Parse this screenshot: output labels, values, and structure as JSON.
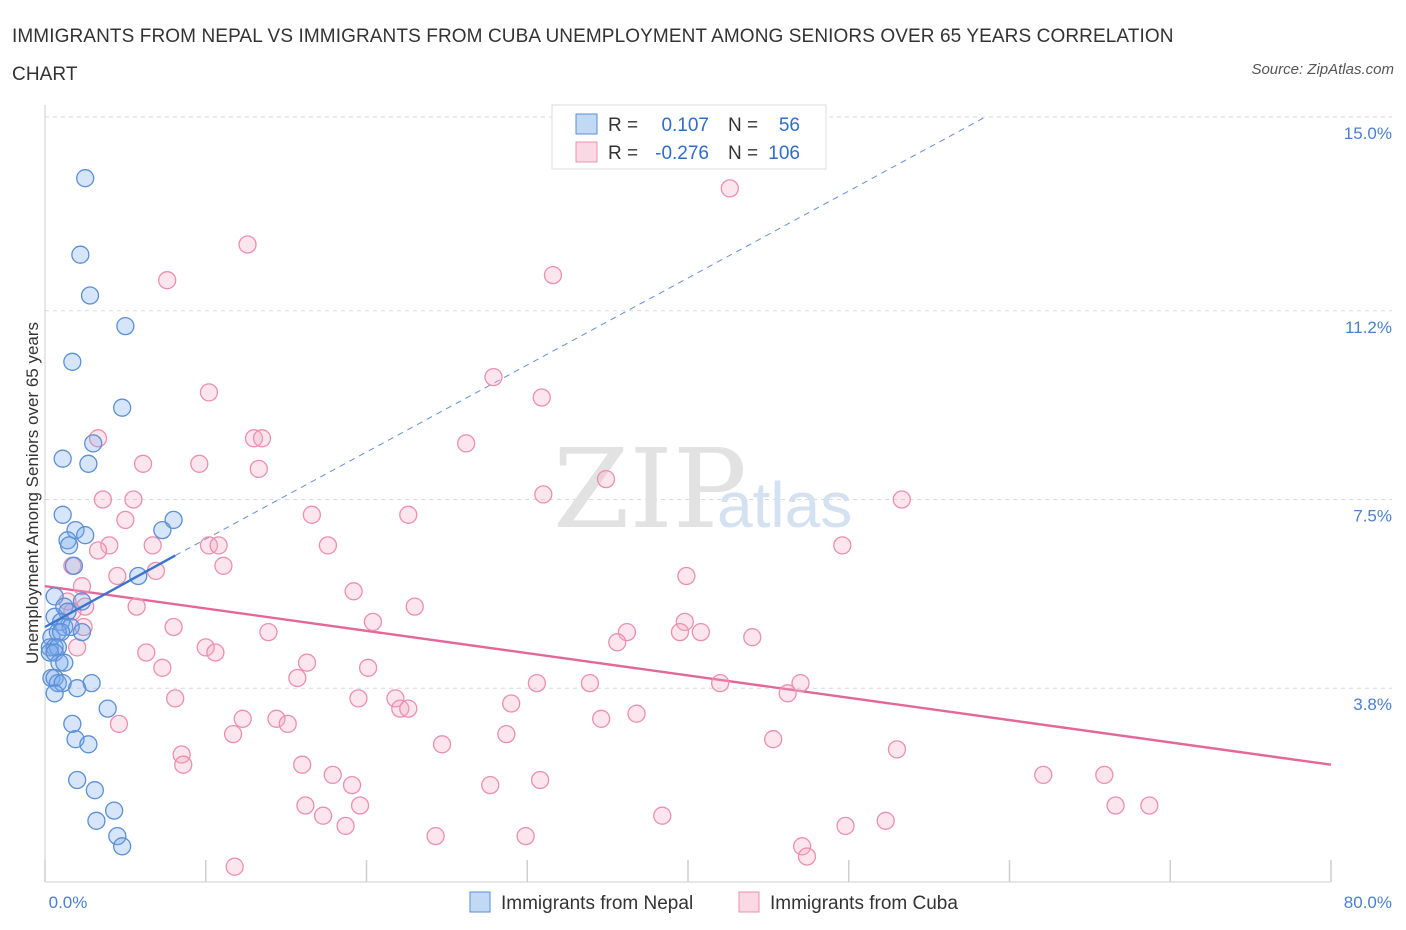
{
  "title": "IMMIGRANTS FROM NEPAL VS IMMIGRANTS FROM CUBA UNEMPLOYMENT AMONG SENIORS OVER 65 YEARS CORRELATION CHART",
  "source": "Source: ZipAtlas.com",
  "watermark": {
    "zip": "ZIP",
    "atlas": "atlas"
  },
  "colors": {
    "nepal": "#5b8fd6",
    "cuba": "#ec8fae",
    "nepal_line": "#3a74cf",
    "cuba_line": "#e3689a",
    "tick": "#4a7fcf"
  },
  "legend": {
    "rows": [
      {
        "r_label": "R =",
        "r_value": "0.107",
        "n_label": "N =",
        "n_value": "56"
      },
      {
        "r_label": "R =",
        "r_value": "-0.276",
        "n_label": "N =",
        "n_value": "106"
      }
    ]
  },
  "bottom_legend": [
    "Immigrants from Nepal",
    "Immigrants from Cuba"
  ],
  "chart_data": {
    "type": "scatter",
    "title": "IMMIGRANTS FROM NEPAL VS IMMIGRANTS FROM CUBA UNEMPLOYMENT AMONG SENIORS OVER 65 YEARS CORRELATION CHART",
    "xlabel": "",
    "ylabel": "Unemployment Among Seniors over 65 years",
    "xlim": [
      0,
      80
    ],
    "ylim": [
      0,
      15
    ],
    "x_tick_labels": [
      "0.0%",
      "80.0%"
    ],
    "y_ticks": [
      3.8,
      7.5,
      11.2,
      15.0
    ],
    "y_tick_labels": [
      "3.8%",
      "7.5%",
      "11.2%",
      "15.0%"
    ],
    "grid": true,
    "legend_position": "top-center",
    "series": [
      {
        "name": "Immigrants from Nepal",
        "color": "#5b8fd6",
        "trend": {
          "x": [
            0,
            8.1
          ],
          "y": [
            5.0,
            6.4
          ],
          "dashed_extension_to": [
            58.5,
            15.0
          ]
        },
        "points": [
          [
            2.5,
            13.8
          ],
          [
            2.2,
            12.3
          ],
          [
            2.8,
            11.5
          ],
          [
            5.0,
            10.9
          ],
          [
            1.7,
            10.2
          ],
          [
            4.8,
            9.3
          ],
          [
            1.1,
            8.3
          ],
          [
            2.7,
            8.2
          ],
          [
            3.0,
            8.6
          ],
          [
            1.1,
            7.2
          ],
          [
            8.0,
            7.1
          ],
          [
            1.9,
            6.9
          ],
          [
            7.3,
            6.9
          ],
          [
            1.4,
            6.7
          ],
          [
            1.5,
            6.6
          ],
          [
            2.5,
            6.8
          ],
          [
            1.8,
            6.2
          ],
          [
            5.8,
            6.0
          ],
          [
            0.6,
            5.6
          ],
          [
            0.6,
            5.2
          ],
          [
            1.2,
            5.4
          ],
          [
            1.4,
            5.3
          ],
          [
            2.3,
            5.5
          ],
          [
            1.0,
            5.1
          ],
          [
            1.2,
            5.0
          ],
          [
            1.6,
            5.0
          ],
          [
            0.4,
            4.8
          ],
          [
            0.8,
            4.9
          ],
          [
            1.0,
            4.9
          ],
          [
            2.3,
            4.9
          ],
          [
            0.3,
            4.6
          ],
          [
            0.6,
            4.6
          ],
          [
            0.8,
            4.6
          ],
          [
            0.3,
            4.5
          ],
          [
            0.6,
            4.5
          ],
          [
            0.9,
            4.3
          ],
          [
            1.2,
            4.3
          ],
          [
            0.4,
            4.0
          ],
          [
            0.6,
            4.0
          ],
          [
            0.8,
            3.9
          ],
          [
            1.1,
            3.9
          ],
          [
            2.9,
            3.9
          ],
          [
            2.0,
            3.8
          ],
          [
            0.6,
            3.7
          ],
          [
            3.9,
            3.4
          ],
          [
            1.7,
            3.1
          ],
          [
            1.9,
            2.8
          ],
          [
            2.7,
            2.7
          ],
          [
            2.0,
            2.0
          ],
          [
            3.1,
            1.8
          ],
          [
            4.3,
            1.4
          ],
          [
            3.2,
            1.2
          ],
          [
            4.5,
            0.9
          ],
          [
            4.8,
            0.7
          ]
        ]
      },
      {
        "name": "Immigrants from Cuba",
        "color": "#ec8fae",
        "trend": {
          "x": [
            0,
            80
          ],
          "y": [
            5.8,
            2.3
          ]
        },
        "points": [
          [
            42.6,
            13.6
          ],
          [
            12.6,
            12.5
          ],
          [
            7.6,
            11.8
          ],
          [
            31.6,
            11.9
          ],
          [
            27.9,
            9.9
          ],
          [
            10.2,
            9.6
          ],
          [
            30.9,
            9.5
          ],
          [
            13.0,
            8.7
          ],
          [
            3.3,
            8.7
          ],
          [
            13.5,
            8.7
          ],
          [
            26.2,
            8.6
          ],
          [
            6.1,
            8.2
          ],
          [
            9.6,
            8.2
          ],
          [
            13.3,
            8.1
          ],
          [
            34.9,
            7.9
          ],
          [
            3.6,
            7.5
          ],
          [
            5.5,
            7.5
          ],
          [
            31.0,
            7.6
          ],
          [
            53.3,
            7.5
          ],
          [
            16.6,
            7.2
          ],
          [
            22.6,
            7.2
          ],
          [
            5.0,
            7.1
          ],
          [
            4.0,
            6.6
          ],
          [
            6.7,
            6.6
          ],
          [
            10.2,
            6.6
          ],
          [
            10.8,
            6.6
          ],
          [
            17.6,
            6.6
          ],
          [
            49.6,
            6.6
          ],
          [
            3.3,
            6.5
          ],
          [
            1.7,
            6.2
          ],
          [
            11.1,
            6.2
          ],
          [
            4.5,
            6.0
          ],
          [
            6.9,
            6.1
          ],
          [
            39.9,
            6.0
          ],
          [
            2.3,
            5.8
          ],
          [
            19.2,
            5.7
          ],
          [
            1.4,
            5.5
          ],
          [
            2.5,
            5.4
          ],
          [
            5.7,
            5.4
          ],
          [
            1.7,
            5.3
          ],
          [
            23.0,
            5.4
          ],
          [
            20.4,
            5.1
          ],
          [
            39.8,
            5.1
          ],
          [
            8.0,
            5.0
          ],
          [
            2.4,
            5.0
          ],
          [
            13.9,
            4.9
          ],
          [
            36.2,
            4.9
          ],
          [
            39.5,
            4.9
          ],
          [
            40.8,
            4.9
          ],
          [
            35.6,
            4.7
          ],
          [
            44.0,
            4.8
          ],
          [
            2.0,
            4.6
          ],
          [
            6.3,
            4.5
          ],
          [
            10.0,
            4.6
          ],
          [
            10.6,
            4.5
          ],
          [
            16.3,
            4.3
          ],
          [
            7.3,
            4.2
          ],
          [
            20.1,
            4.2
          ],
          [
            15.7,
            4.0
          ],
          [
            30.6,
            3.9
          ],
          [
            33.9,
            3.9
          ],
          [
            42.0,
            3.9
          ],
          [
            47.0,
            3.9
          ],
          [
            46.2,
            3.7
          ],
          [
            8.1,
            3.6
          ],
          [
            19.5,
            3.6
          ],
          [
            21.8,
            3.6
          ],
          [
            22.1,
            3.4
          ],
          [
            22.6,
            3.4
          ],
          [
            29.0,
            3.5
          ],
          [
            36.8,
            3.3
          ],
          [
            34.6,
            3.2
          ],
          [
            12.3,
            3.2
          ],
          [
            14.4,
            3.2
          ],
          [
            15.1,
            3.1
          ],
          [
            4.6,
            3.1
          ],
          [
            11.7,
            2.9
          ],
          [
            28.7,
            2.9
          ],
          [
            45.3,
            2.8
          ],
          [
            24.7,
            2.7
          ],
          [
            53.0,
            2.6
          ],
          [
            8.5,
            2.5
          ],
          [
            8.6,
            2.3
          ],
          [
            16.0,
            2.3
          ],
          [
            17.9,
            2.1
          ],
          [
            30.8,
            2.0
          ],
          [
            62.1,
            2.1
          ],
          [
            65.9,
            2.1
          ],
          [
            19.1,
            1.9
          ],
          [
            27.7,
            1.9
          ],
          [
            68.7,
            1.5
          ],
          [
            16.2,
            1.5
          ],
          [
            19.6,
            1.5
          ],
          [
            66.6,
            1.5
          ],
          [
            38.4,
            1.3
          ],
          [
            17.3,
            1.3
          ],
          [
            52.3,
            1.2
          ],
          [
            49.8,
            1.1
          ],
          [
            18.7,
            1.1
          ],
          [
            24.3,
            0.9
          ],
          [
            29.9,
            0.9
          ],
          [
            47.1,
            0.7
          ],
          [
            47.4,
            0.5
          ],
          [
            11.8,
            0.3
          ]
        ]
      }
    ]
  }
}
